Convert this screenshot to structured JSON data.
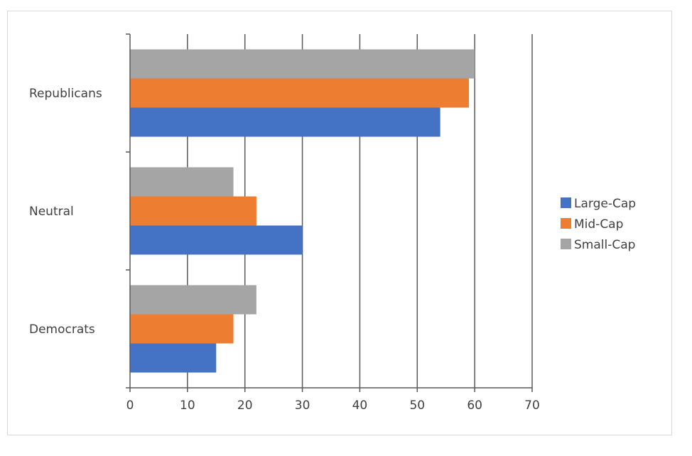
{
  "chart_data": {
    "type": "bar",
    "orientation": "horizontal",
    "categories": [
      "Democrats",
      "Neutral",
      "Republicans"
    ],
    "series": [
      {
        "name": "Large-Cap",
        "values": [
          15,
          30,
          54
        ],
        "color": "#4472C4"
      },
      {
        "name": "Mid-Cap",
        "values": [
          18,
          22,
          59
        ],
        "color": "#ED7D31"
      },
      {
        "name": "Small-Cap",
        "values": [
          22,
          18,
          60
        ],
        "color": "#A5A5A5"
      }
    ],
    "xlim": [
      0,
      70
    ],
    "xticks": [
      "0",
      "10",
      "20",
      "30",
      "40",
      "50",
      "60",
      "70"
    ],
    "grid": "vertical",
    "legend": "right",
    "title": "",
    "xlabel": "",
    "ylabel": ""
  }
}
